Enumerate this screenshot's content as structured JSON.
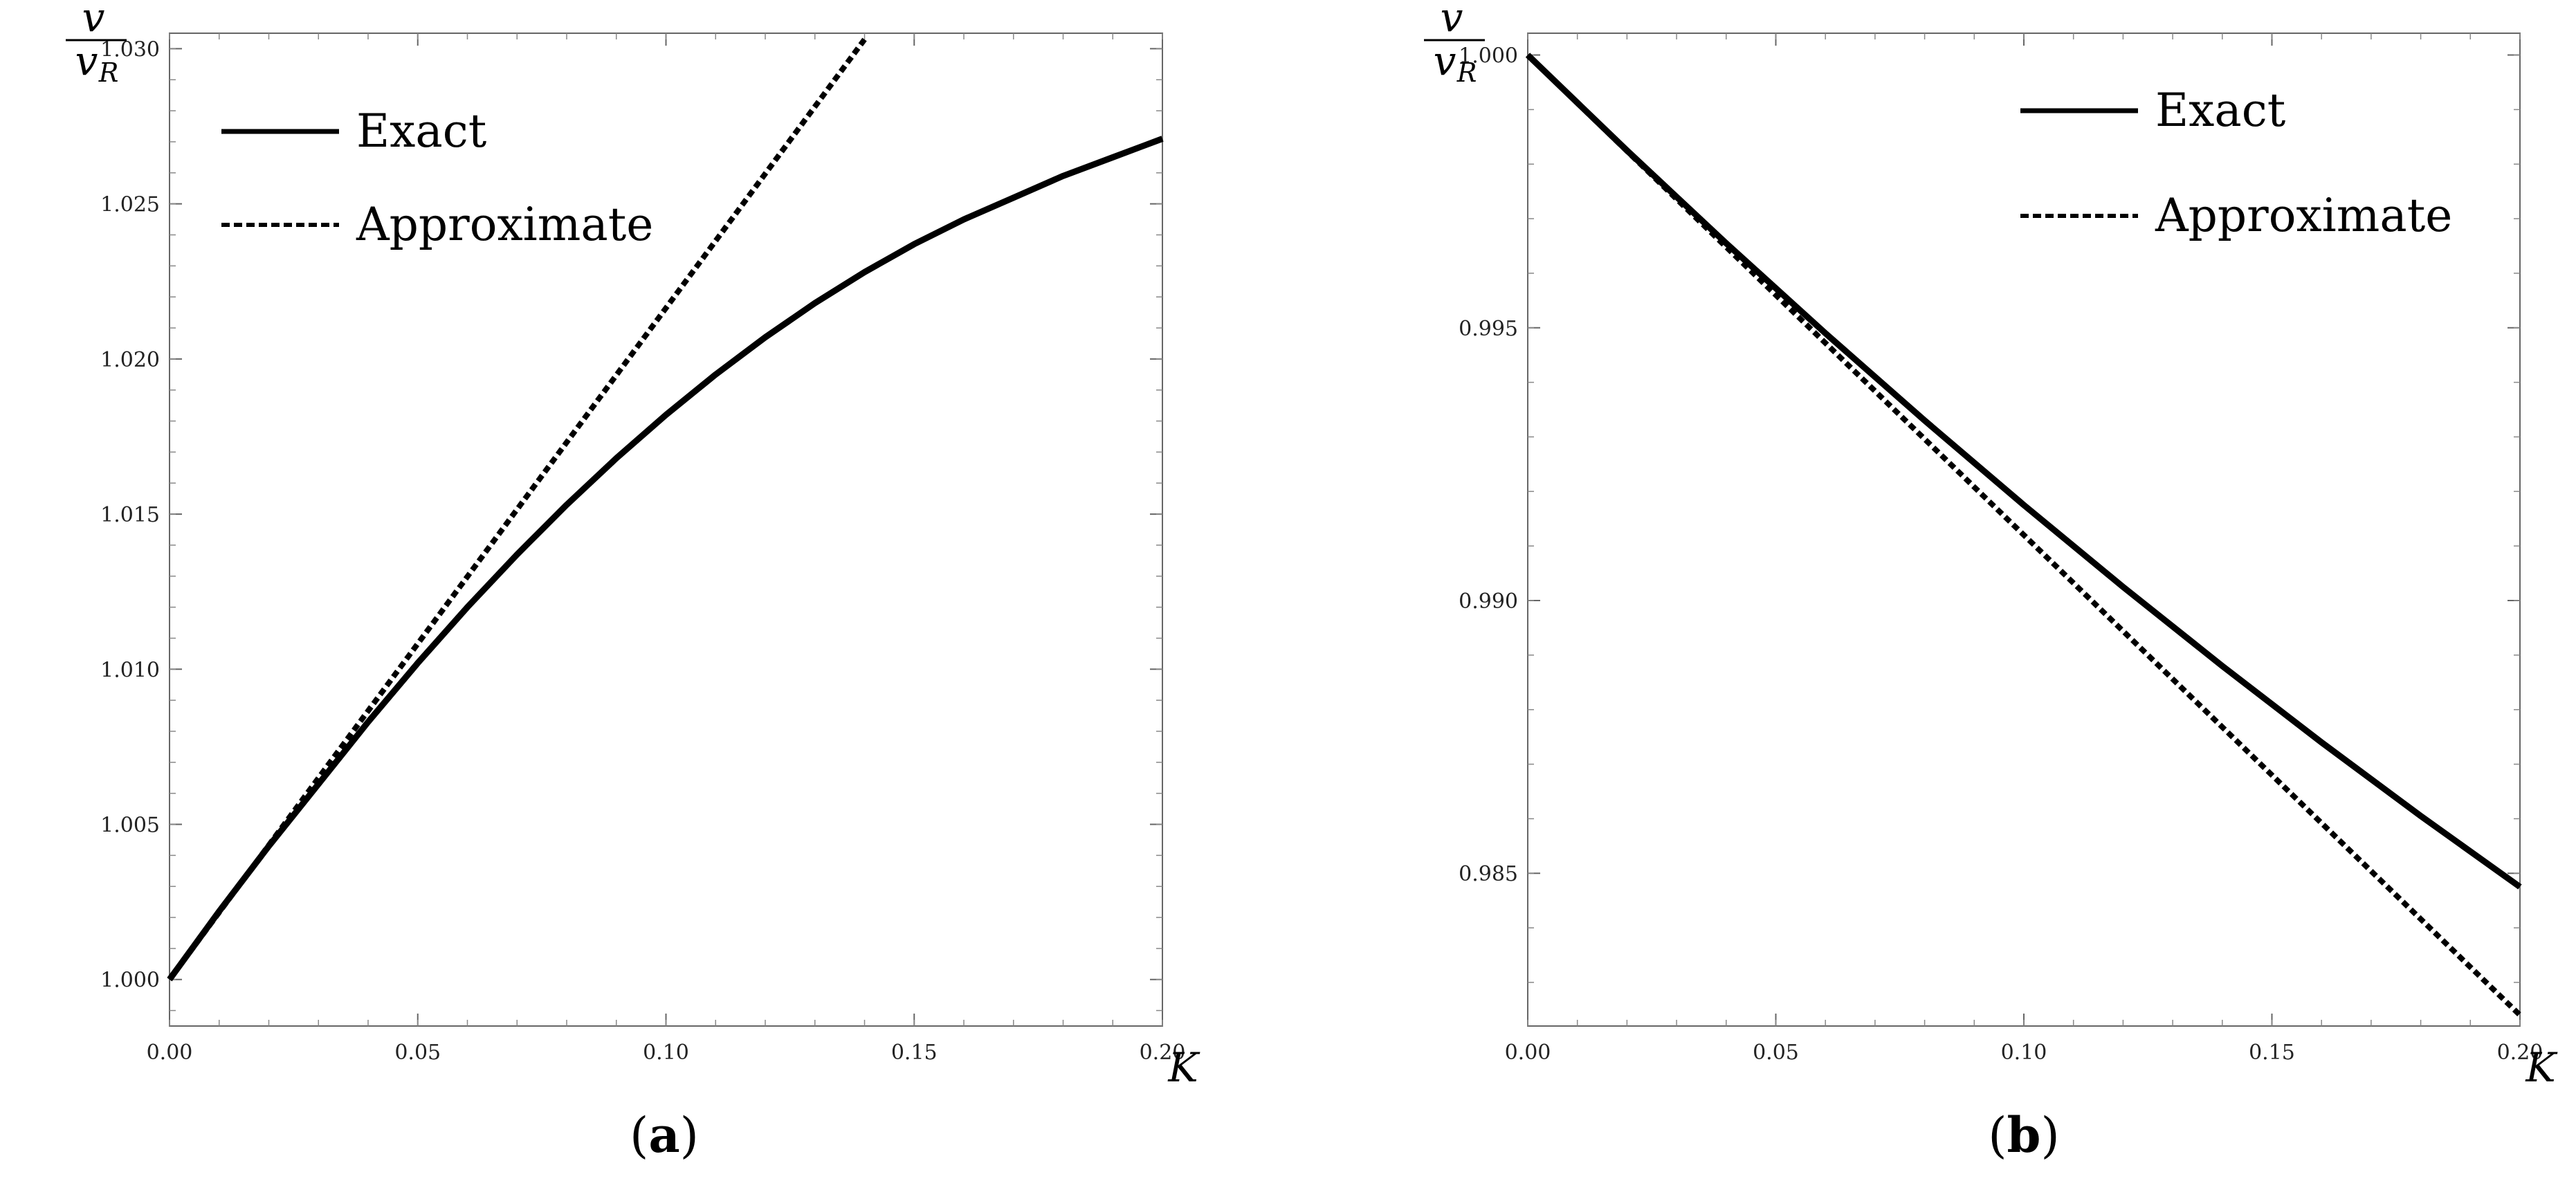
{
  "chart_data": [
    {
      "type": "line",
      "panel_label": "a",
      "xlabel": "K",
      "ylabel": {
        "numerator": "v",
        "denominator": "v",
        "subscript": "R"
      },
      "xlim": [
        0,
        0.2
      ],
      "ylim": [
        0.9985,
        1.0305
      ],
      "xticks": [
        "0.00",
        "0.05",
        "0.10",
        "0.15",
        "0.20"
      ],
      "yticks": [
        "1.000",
        "1.005",
        "1.010",
        "1.015",
        "1.020",
        "1.025",
        "1.030"
      ],
      "legend_position": "top-left",
      "series": [
        {
          "name": "Exact",
          "style": "solid",
          "x": [
            0,
            0.01,
            0.02,
            0.03,
            0.04,
            0.05,
            0.06,
            0.07,
            0.08,
            0.09,
            0.1,
            0.11,
            0.12,
            0.13,
            0.14,
            0.15,
            0.16,
            0.17,
            0.18,
            0.19,
            0.2
          ],
          "y": [
            1.0,
            1.0022,
            1.0043,
            1.0063,
            1.0083,
            1.0102,
            1.012,
            1.0137,
            1.0153,
            1.0168,
            1.0182,
            1.0195,
            1.0207,
            1.0218,
            1.0228,
            1.0237,
            1.0245,
            1.0252,
            1.0259,
            1.0265,
            1.0271
          ]
        },
        {
          "name": "Approximate",
          "style": "dashed",
          "x": [
            0,
            0.14
          ],
          "y": [
            1.0,
            1.0303
          ]
        }
      ]
    },
    {
      "type": "line",
      "panel_label": "b",
      "xlabel": "K",
      "ylabel": {
        "numerator": "v",
        "denominator": "v",
        "subscript": "R"
      },
      "xlim": [
        0,
        0.2
      ],
      "ylim": [
        0.9822,
        1.0004
      ],
      "xticks": [
        "0.00",
        "0.05",
        "0.10",
        "0.15",
        "0.20"
      ],
      "yticks": [
        "0.985",
        "0.990",
        "0.995",
        "1.000"
      ],
      "legend_position": "top-right",
      "series": [
        {
          "name": "Exact",
          "style": "solid",
          "x": [
            0,
            0.02,
            0.04,
            0.06,
            0.08,
            0.1,
            0.12,
            0.14,
            0.16,
            0.18,
            0.2
          ],
          "y": [
            1.0,
            0.99825,
            0.99655,
            0.9949,
            0.9933,
            0.99175,
            0.99025,
            0.9888,
            0.9874,
            0.98605,
            0.98475
          ]
        },
        {
          "name": "Approximate",
          "style": "dashed",
          "x": [
            0,
            0.2
          ],
          "y": [
            1.0,
            0.9824
          ]
        }
      ]
    }
  ]
}
